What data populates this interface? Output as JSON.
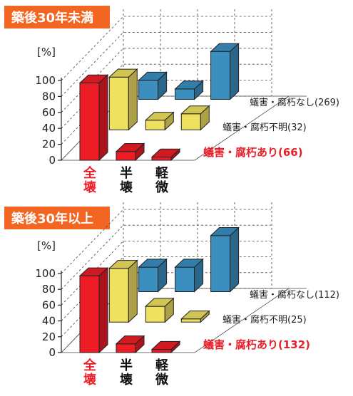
{
  "unit_label": "[%]",
  "categories": [
    "全壊",
    "半壊",
    "軽微"
  ],
  "colors": {
    "title_bg": "#f26522",
    "red": "#ee1c25",
    "yellow": "#f0e060",
    "blue": "#3a8fbf",
    "legend_red_text": "#e8202a",
    "axis": "#222222",
    "grid": "#444444"
  },
  "chart_data": [
    {
      "type": "bar",
      "title": "築後30年未満",
      "categories": [
        "全壊",
        "半壊",
        "軽微"
      ],
      "ylim": [
        0,
        100
      ],
      "yticks": [
        0,
        20,
        40,
        60,
        80,
        100
      ],
      "grid": true,
      "series": [
        {
          "name": "蟻害・腐朽あり(66)",
          "color": "red",
          "values": [
            97,
            11,
            4
          ]
        },
        {
          "name": "蟻害・腐朽不明(32)",
          "color": "yellow",
          "values": [
            66,
            12,
            20
          ]
        },
        {
          "name": "蟻害・腐朽なし(269)",
          "color": "blue",
          "values": [
            24,
            13,
            60
          ]
        }
      ]
    },
    {
      "type": "bar",
      "title": "築後30年以上",
      "categories": [
        "全壊",
        "半壊",
        "軽微"
      ],
      "ylim": [
        0,
        100
      ],
      "yticks": [
        0,
        20,
        40,
        60,
        80,
        100
      ],
      "grid": true,
      "series": [
        {
          "name": "蟻害・腐朽あり(132)",
          "color": "red",
          "values": [
            97,
            11,
            4
          ]
        },
        {
          "name": "蟻害・腐朽不明(25)",
          "color": "yellow",
          "values": [
            68,
            20,
            4
          ]
        },
        {
          "name": "蟻害・腐朽なし(112)",
          "color": "blue",
          "values": [
            31,
            31,
            71
          ]
        }
      ]
    }
  ]
}
